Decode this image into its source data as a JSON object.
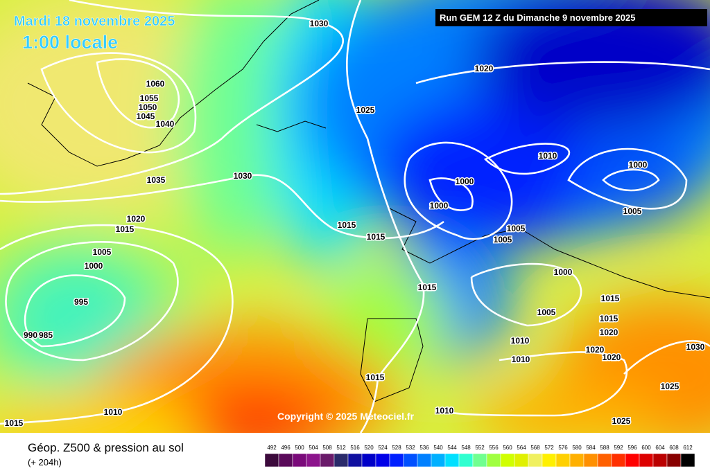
{
  "header": {
    "date": "Mardi 18 novembre 2025",
    "time": "1:00 locale",
    "run": "Run GEM 12 Z du Dimanche 9 novembre 2025"
  },
  "copyright": "Copyright © 2025 Meteociel.fr",
  "isobar_labels": [
    "1030",
    "1020",
    "1025",
    "1060",
    "1055",
    "1050",
    "1045",
    "1040",
    "1035",
    "1030",
    "1010",
    "1000",
    "1000",
    "1000",
    "1005",
    "1015",
    "1015",
    "1005",
    "1005",
    "1020",
    "1015",
    "1005",
    "1000",
    "995",
    "990",
    "985",
    "1015",
    "1000",
    "1015",
    "1005",
    "1015",
    "1010",
    "1020",
    "1020",
    "1020",
    "1010",
    "1030",
    "1015",
    "1025",
    "1010",
    "1010",
    "1025",
    "1015"
  ],
  "legend": {
    "title": "Géop. Z500 & pression au sol",
    "lead": "(+ 204h)",
    "scale": [
      "492",
      "496",
      "500",
      "504",
      "508",
      "512",
      "516",
      "520",
      "524",
      "528",
      "532",
      "536",
      "540",
      "544",
      "548",
      "552",
      "556",
      "560",
      "564",
      "568",
      "572",
      "576",
      "580",
      "584",
      "588",
      "592",
      "596",
      "600",
      "604",
      "608",
      "612"
    ],
    "colors": [
      "#3c0a3c",
      "#5a0a5a",
      "#7a0a7a",
      "#8c148c",
      "#6a1a6a",
      "#2a2a6a",
      "#1010a0",
      "#0000c8",
      "#0000e8",
      "#0020ff",
      "#0050ff",
      "#0080ff",
      "#00b0ff",
      "#00e0ff",
      "#30ffd0",
      "#70ff90",
      "#a0ff40",
      "#d0ff00",
      "#e0f000",
      "#f0f060",
      "#fff000",
      "#ffd000",
      "#ffb000",
      "#ff9000",
      "#ff6000",
      "#ff3000",
      "#ff0000",
      "#dd0000",
      "#bb0000",
      "#880000",
      "#000000"
    ]
  }
}
